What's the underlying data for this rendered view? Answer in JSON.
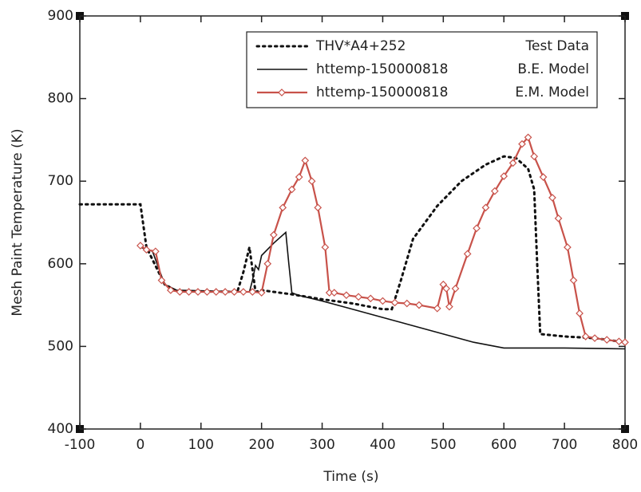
{
  "chart_data": {
    "type": "line",
    "x_label": "Time (s)",
    "y_label": "Mesh Paint Temperature (K)",
    "xlim": [
      -100,
      800
    ],
    "ylim": [
      400,
      900
    ],
    "xticks": [
      -100,
      0,
      100,
      200,
      300,
      400,
      500,
      600,
      700,
      800
    ],
    "yticks": [
      400,
      500,
      600,
      700,
      800,
      900
    ],
    "series": [
      {
        "name": "THV*A4+252",
        "description": "Test Data",
        "color": "#111111",
        "style": "dotted",
        "x": [
          -100,
          0,
          10,
          40,
          60,
          160,
          170,
          180,
          190,
          200,
          250,
          300,
          350,
          400,
          415,
          430,
          450,
          490,
          530,
          570,
          600,
          620,
          640,
          650,
          655,
          660,
          700,
          750,
          800
        ],
        "values": [
          672,
          672,
          620,
          575,
          567,
          566,
          590,
          620,
          566,
          568,
          563,
          557,
          552,
          545,
          545,
          580,
          630,
          670,
          700,
          720,
          730,
          728,
          715,
          690,
          600,
          515,
          512,
          510,
          505
        ]
      },
      {
        "name": "httemp-150000818",
        "description": "B.E. Model",
        "color": "#111111",
        "style": "solid",
        "x": [
          0,
          20,
          40,
          60,
          180,
          185,
          190,
          195,
          200,
          220,
          240,
          245,
          250,
          260,
          300,
          350,
          400,
          450,
          500,
          550,
          600,
          700,
          800
        ],
        "values": [
          620,
          615,
          575,
          568,
          566,
          580,
          598,
          593,
          610,
          625,
          638,
          600,
          565,
          562,
          555,
          545,
          535,
          525,
          515,
          505,
          498,
          498,
          497
        ]
      },
      {
        "name": "httemp-150000818",
        "description": "E.M. Model",
        "color": "#c8524a",
        "style": "marker",
        "x": [
          0,
          10,
          25,
          35,
          50,
          65,
          80,
          95,
          110,
          125,
          140,
          155,
          170,
          185,
          200,
          210,
          220,
          235,
          250,
          262,
          272,
          283,
          293,
          305,
          312,
          320,
          340,
          360,
          380,
          400,
          420,
          440,
          460,
          490,
          500,
          505,
          510,
          520,
          540,
          555,
          570,
          585,
          600,
          615,
          630,
          640,
          650,
          665,
          680,
          690,
          705,
          715,
          725,
          735,
          750,
          770,
          790,
          800
        ],
        "values": [
          622,
          617,
          615,
          580,
          568,
          566,
          566,
          566,
          566,
          566,
          566,
          566,
          566,
          566,
          565,
          600,
          635,
          668,
          690,
          705,
          725,
          700,
          668,
          620,
          565,
          565,
          562,
          560,
          558,
          555,
          553,
          552,
          550,
          546,
          575,
          570,
          548,
          570,
          612,
          643,
          668,
          688,
          706,
          722,
          745,
          753,
          730,
          705,
          680,
          655,
          620,
          580,
          540,
          512,
          510,
          508,
          506,
          505
        ]
      }
    ]
  }
}
